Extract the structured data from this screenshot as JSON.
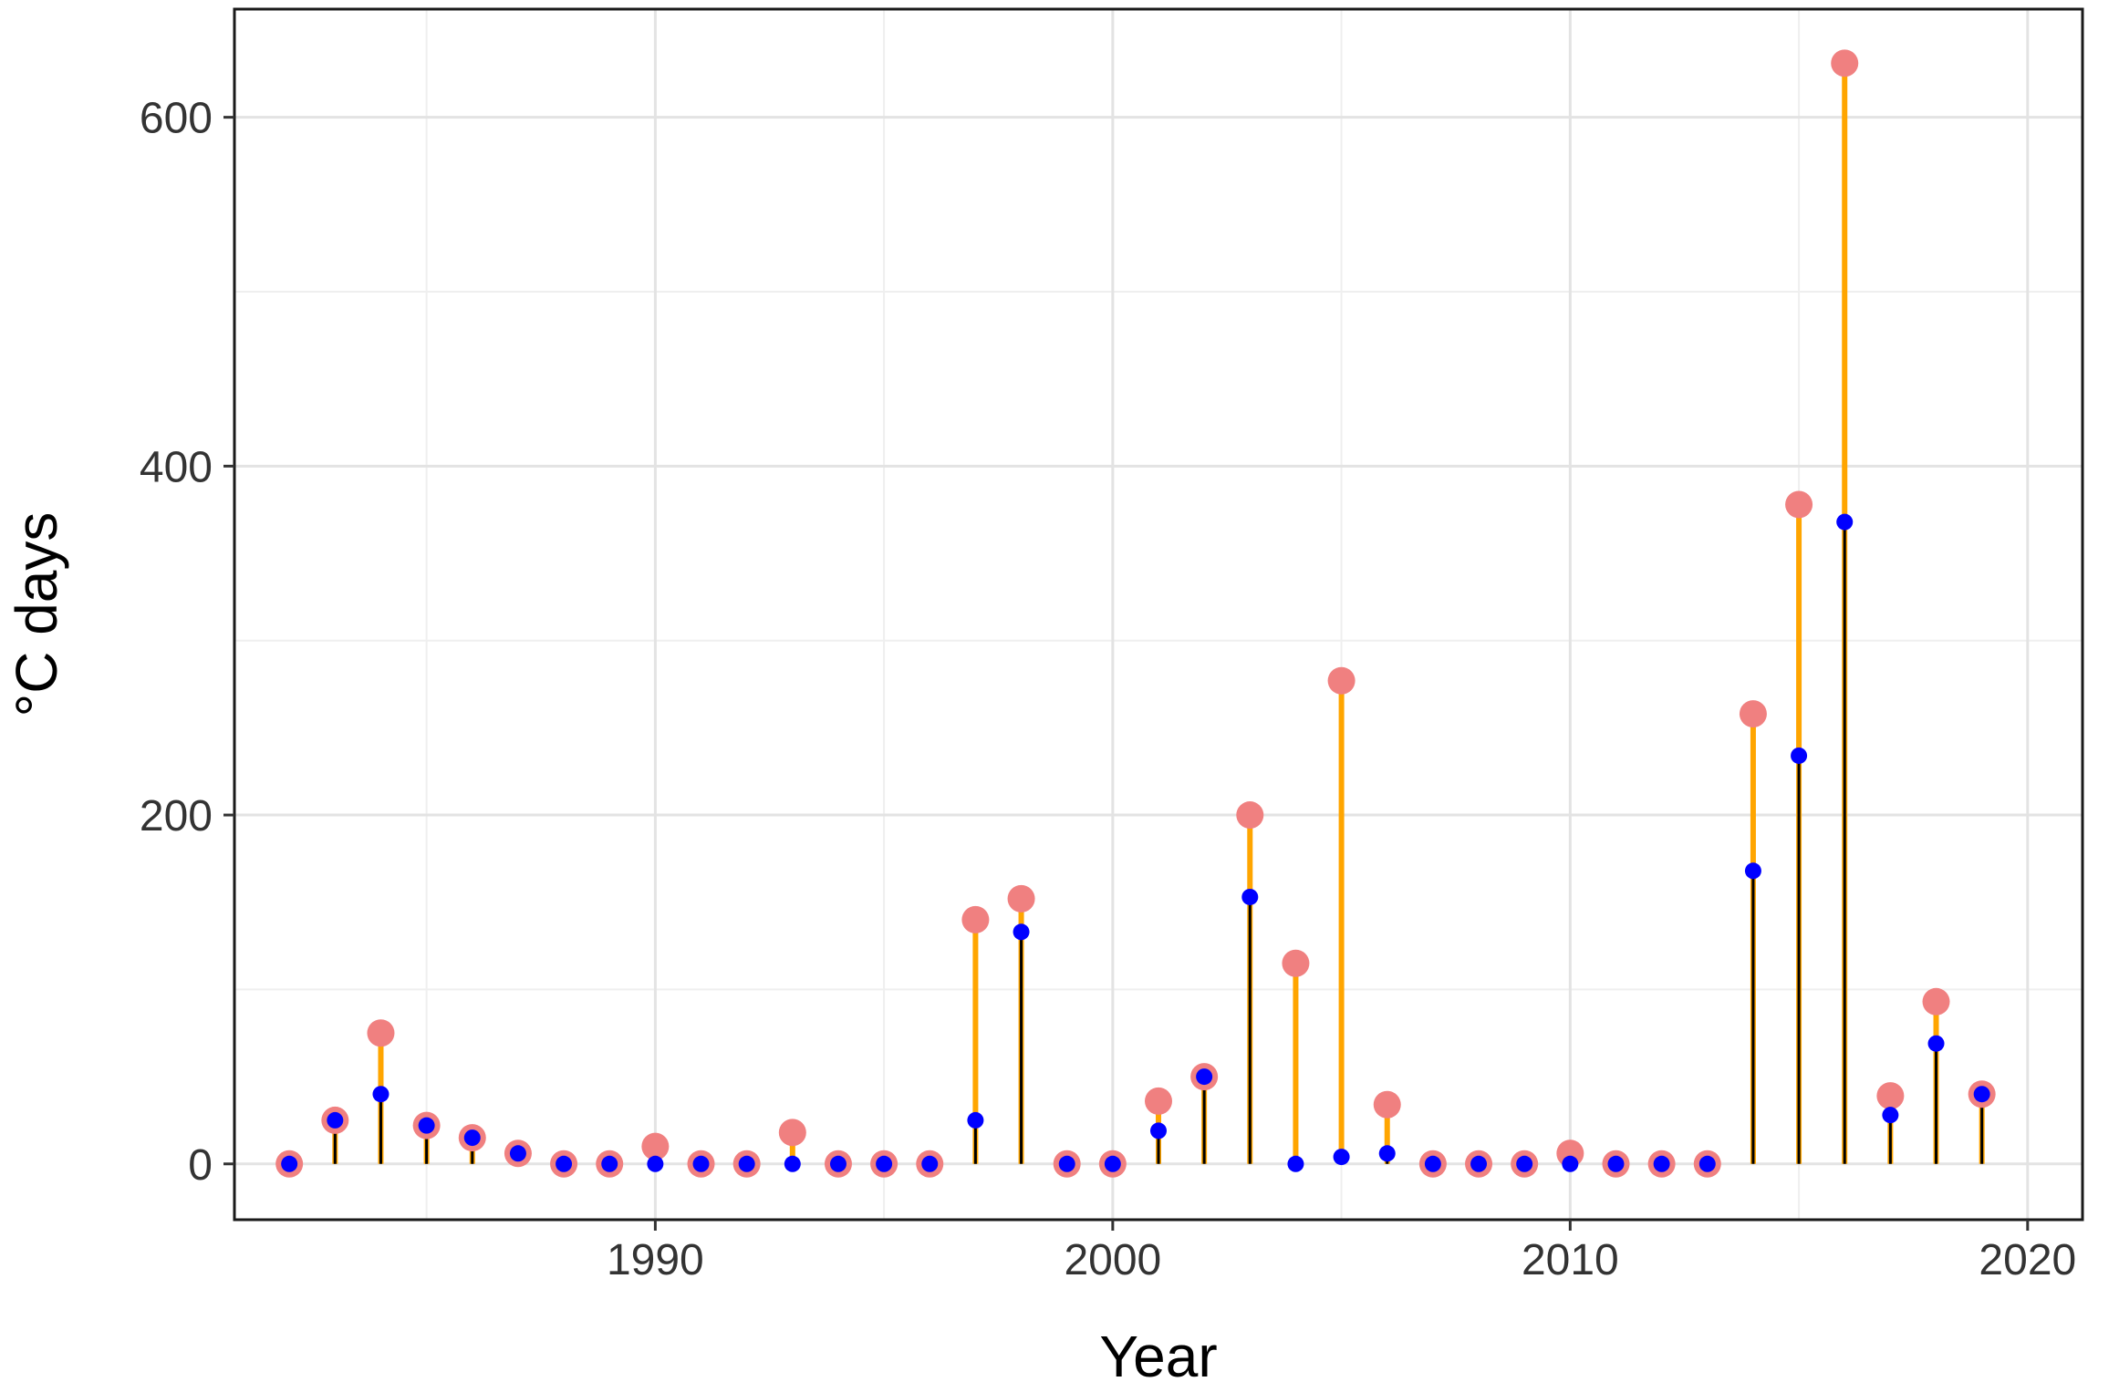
{
  "chart_data": {
    "type": "lollipop",
    "xlabel": "Year",
    "ylabel": "°C days",
    "xlim": [
      1980.8,
      2021.2
    ],
    "ylim": [
      -32,
      662
    ],
    "x_ticks": [
      1990,
      2000,
      2010,
      2020
    ],
    "y_ticks": [
      0,
      200,
      400,
      600
    ],
    "grid": true,
    "legend": "none",
    "colors": {
      "outer_stem": "#FFA500",
      "inner_stem": "#000000",
      "outer_point": "#F08080",
      "inner_point": "#0000FF"
    },
    "years": [
      1982,
      1983,
      1984,
      1985,
      1986,
      1987,
      1988,
      1989,
      1990,
      1991,
      1992,
      1993,
      1994,
      1995,
      1996,
      1997,
      1998,
      1999,
      2000,
      2001,
      2002,
      2003,
      2004,
      2005,
      2006,
      2007,
      2008,
      2009,
      2010,
      2011,
      2012,
      2013,
      2014,
      2015,
      2016,
      2017,
      2018,
      2019
    ],
    "series": [
      {
        "role": "outer",
        "values": [
          0,
          25,
          75,
          22,
          15,
          6,
          0,
          0,
          10,
          0,
          0,
          18,
          0,
          0,
          0,
          140,
          152,
          0,
          0,
          36,
          50,
          200,
          115,
          277,
          34,
          0,
          0,
          0,
          6,
          0,
          0,
          0,
          258,
          378,
          631,
          39,
          93,
          40
        ]
      },
      {
        "role": "inner",
        "values": [
          0,
          25,
          40,
          22,
          15,
          6,
          0,
          0,
          0,
          0,
          0,
          0,
          0,
          0,
          0,
          25,
          133,
          0,
          0,
          19,
          50,
          153,
          0,
          4,
          6,
          0,
          0,
          0,
          0,
          0,
          0,
          0,
          168,
          234,
          368,
          28,
          69,
          40
        ]
      }
    ]
  }
}
